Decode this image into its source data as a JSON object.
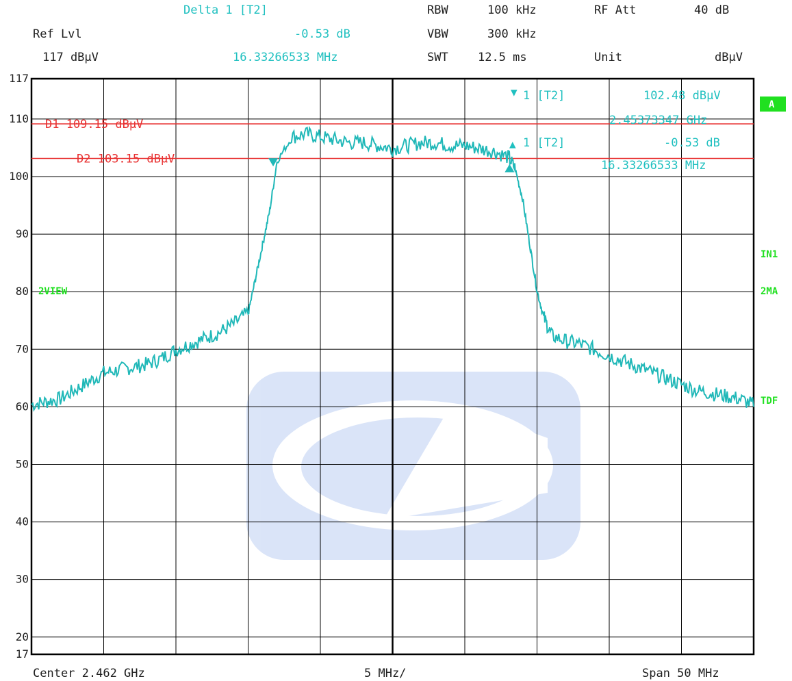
{
  "header": {
    "marker_title": "Delta 1 [T2]",
    "marker_delta": "-0.53 dB",
    "marker_freq": "16.33266533 MHz",
    "ref_lvl_label": "Ref Lvl",
    "ref_lvl_value": "117 dBµV",
    "rbw_label": "RBW",
    "rbw_value": "100 kHz",
    "vbw_label": "VBW",
    "vbw_value": "300 kHz",
    "swt_label": "SWT",
    "swt_value": "12.5 ms",
    "rfatt_label": "RF Att",
    "rfatt_value": "40 dB",
    "unit_label": "Unit",
    "unit_value": "dBµV"
  },
  "footer": {
    "center": "Center 2.462 GHz",
    "div": "5 MHz/",
    "span": "Span 50 MHz"
  },
  "side_labels": {
    "a": "A",
    "in1": "IN1",
    "twoma": "2MA",
    "tdf": "TDF",
    "twoview": "2VIEW"
  },
  "markers": {
    "m1_label": "1 [T2]",
    "m1_level": "102.48 dBµV",
    "m1_freq": "2.45373347 GHz",
    "d1_label": "1 [T2]",
    "d1_level": "-0.53 dB",
    "d1_freq": "16.33266533 MHz"
  },
  "display_lines": {
    "d1": "D1 109.15 dBµV",
    "d2": "D2 103.15 dBµV"
  },
  "colors": {
    "trace": "#20b8b8",
    "lines": "#e83030",
    "grid": "#000000",
    "labels": "#20e020"
  },
  "chart_data": {
    "type": "line",
    "title": "",
    "xlabel": "",
    "ylabel": "",
    "xlim": [
      2.437,
      2.487
    ],
    "ylim": [
      17,
      117
    ],
    "x_unit": "GHz",
    "y_unit": "dBµV",
    "y_ticks": [
      "117",
      "110",
      "100",
      "90",
      "80",
      "70",
      "60",
      "50",
      "40",
      "30",
      "20",
      "17"
    ],
    "reference_lines": [
      {
        "name": "D1",
        "value": 109.15
      },
      {
        "name": "D2",
        "value": 103.15
      }
    ],
    "series": [
      {
        "x": [
          2.437,
          2.438,
          2.439,
          2.44,
          2.441,
          2.442,
          2.443,
          2.444,
          2.445,
          2.446,
          2.447,
          2.448,
          2.449,
          2.45,
          2.451,
          2.452,
          2.4525,
          2.453,
          2.4535,
          2.454,
          2.455,
          2.456,
          2.457,
          2.458,
          2.459,
          2.46,
          2.461,
          2.462,
          2.463,
          2.464,
          2.465,
          2.466,
          2.467,
          2.468,
          2.469,
          2.47,
          2.4705,
          2.471,
          2.4715,
          2.472,
          2.4725,
          2.473,
          2.474,
          2.475,
          2.476,
          2.477,
          2.478,
          2.479,
          2.48,
          2.481,
          2.482,
          2.483,
          2.484,
          2.485,
          2.486,
          2.487
        ],
        "values": [
          60,
          60.5,
          61,
          62.5,
          64,
          65.5,
          66,
          66.5,
          67,
          68,
          69.5,
          70.5,
          71.5,
          72.5,
          74,
          76,
          82,
          88,
          94,
          102.5,
          106.5,
          107,
          106.5,
          106,
          105.5,
          105.5,
          105,
          104.5,
          105,
          105.5,
          105.5,
          105,
          105,
          104.5,
          104,
          103,
          101,
          96,
          88,
          80,
          75,
          72,
          71,
          70.5,
          69.5,
          68.5,
          67.5,
          66.5,
          65.5,
          64.5,
          63.5,
          62.5,
          62,
          61.5,
          61,
          60
        ]
      }
    ],
    "markers": [
      {
        "name": "M1",
        "x": 2.45373347,
        "y": 102.48
      },
      {
        "name": "D1",
        "x": 2.4701,
        "y": 101.95
      }
    ]
  }
}
